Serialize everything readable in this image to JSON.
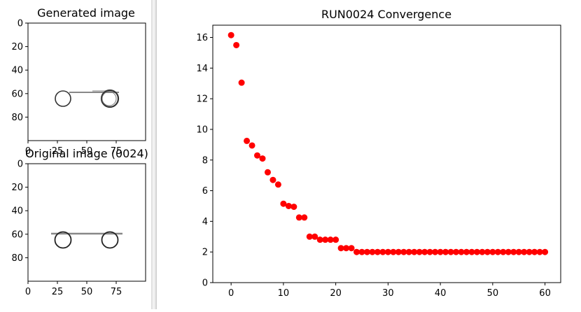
{
  "generated_panel": {
    "title": "Generated image",
    "xticks": [
      "0",
      "25",
      "50",
      "75"
    ],
    "yticks": [
      "0",
      "20",
      "40",
      "60",
      "80"
    ],
    "xlim": [
      0,
      100
    ],
    "ylim": [
      100,
      0
    ]
  },
  "original_panel": {
    "title": "Original image (0024)",
    "xticks": [
      "0",
      "25",
      "50",
      "75"
    ],
    "yticks": [
      "0",
      "20",
      "40",
      "60",
      "80"
    ],
    "xlim": [
      0,
      100
    ],
    "ylim": [
      100,
      0
    ]
  },
  "chart_data": {
    "type": "scatter",
    "title": "RUN0024 Convergence",
    "xlabel": "",
    "ylabel": "",
    "xlim": [
      -3.5,
      63
    ],
    "ylim": [
      0,
      16.8
    ],
    "xticks": [
      0,
      10,
      20,
      30,
      40,
      50,
      60
    ],
    "yticks": [
      0,
      2,
      4,
      6,
      8,
      10,
      12,
      14,
      16
    ],
    "marker_color": "#ff0000",
    "grid": false,
    "x": [
      0,
      1,
      2,
      3,
      4,
      5,
      6,
      7,
      8,
      9,
      10,
      11,
      12,
      13,
      14,
      15,
      16,
      17,
      18,
      19,
      20,
      21,
      22,
      23,
      24,
      25,
      26,
      27,
      28,
      29,
      30,
      31,
      32,
      33,
      34,
      35,
      36,
      37,
      38,
      39,
      40,
      41,
      42,
      43,
      44,
      45,
      46,
      47,
      48,
      49,
      50,
      51,
      52,
      53,
      54,
      55,
      56,
      57,
      58,
      59,
      60
    ],
    "y": [
      16.15,
      15.5,
      13.05,
      9.25,
      8.95,
      8.3,
      8.1,
      7.2,
      6.7,
      6.4,
      5.15,
      5.0,
      4.95,
      4.25,
      4.25,
      3.0,
      3.0,
      2.8,
      2.8,
      2.8,
      2.8,
      2.25,
      2.25,
      2.25,
      2.0,
      2.0,
      2.0,
      2.0,
      2.0,
      2.0,
      2.0,
      2.0,
      2.0,
      2.0,
      2.0,
      2.0,
      2.0,
      2.0,
      2.0,
      2.0,
      2.0,
      2.0,
      2.0,
      2.0,
      2.0,
      2.0,
      2.0,
      2.0,
      2.0,
      2.0,
      2.0,
      2.0,
      2.0,
      2.0,
      2.0,
      2.0,
      2.0,
      2.0,
      2.0,
      2.0,
      2.0
    ]
  }
}
